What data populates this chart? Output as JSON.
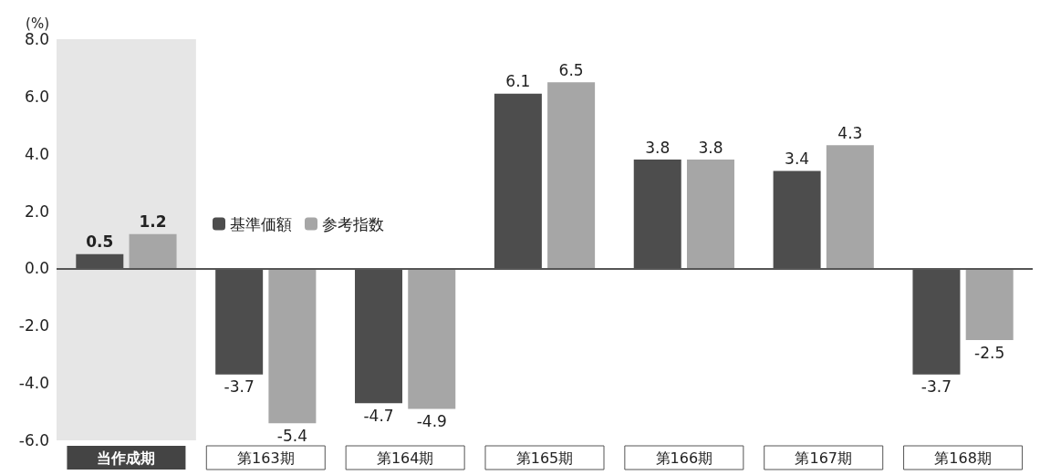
{
  "chart_data": {
    "type": "bar",
    "ylabel": "(%)",
    "categories": [
      "当作成期",
      "第163期",
      "第164期",
      "第165期",
      "第166期",
      "第167期",
      "第168期"
    ],
    "series": [
      {
        "name": "基準価額",
        "color": "#4d4d4d",
        "values": [
          0.5,
          -3.7,
          -4.7,
          6.1,
          3.8,
          3.4,
          -3.7
        ]
      },
      {
        "name": "参考指数",
        "color": "#a6a6a6",
        "values": [
          1.2,
          -5.4,
          -4.9,
          6.5,
          3.8,
          4.3,
          -2.5
        ]
      }
    ],
    "ylim": [
      -6,
      8
    ],
    "yticks": [
      {
        "value": -6,
        "label": "-6.0"
      },
      {
        "value": -4,
        "label": "-4.0"
      },
      {
        "value": -2,
        "label": "-2.0"
      },
      {
        "value": 0,
        "label": "0.0"
      },
      {
        "value": 2,
        "label": "2.0"
      },
      {
        "value": 4,
        "label": "4.0"
      },
      {
        "value": 6,
        "label": "6.0"
      },
      {
        "value": 8,
        "label": "8.0"
      }
    ],
    "bands": [
      {
        "axis": "x",
        "from": "当作成期",
        "to": "当作成期",
        "color": "#e6e6e6"
      }
    ],
    "ref_lines": [
      {
        "axis": "y",
        "value": 0,
        "color": "#555555"
      }
    ],
    "data_labels": true,
    "grid": false,
    "legend": "top left"
  }
}
